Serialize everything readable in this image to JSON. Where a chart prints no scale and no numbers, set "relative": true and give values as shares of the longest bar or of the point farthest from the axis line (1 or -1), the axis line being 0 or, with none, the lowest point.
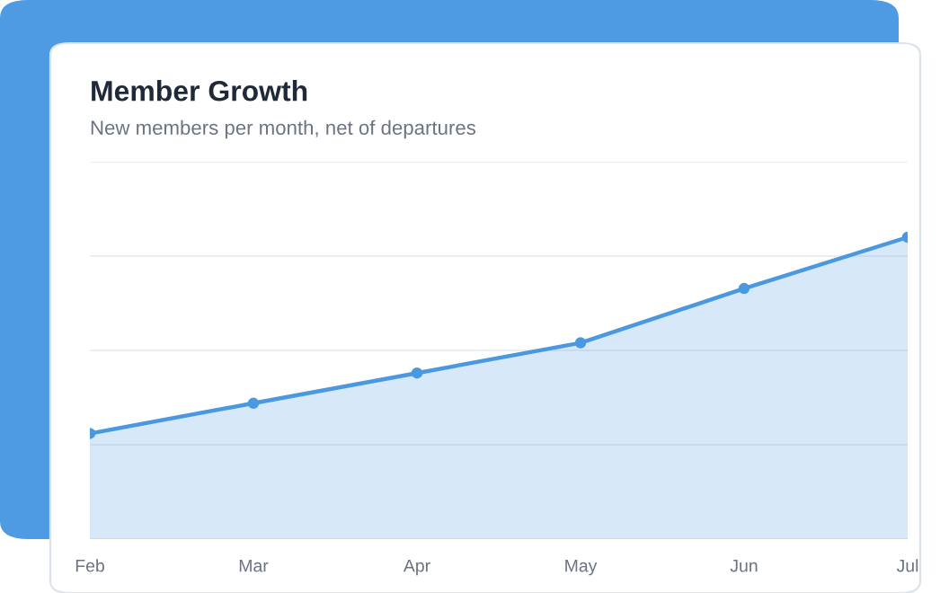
{
  "chart_data": {
    "type": "area",
    "title": "Member Growth",
    "subtitle": "New members per month, net of departures",
    "categories": [
      "Feb",
      "Mar",
      "Apr",
      "May",
      "Jun",
      "Jul"
    ],
    "relative": true,
    "series": [
      {
        "color": "#4a98e0",
        "values": [
          0.35,
          0.45,
          0.55,
          0.65,
          0.83,
          1.0
        ]
      }
    ],
    "marker": "circle",
    "line_style": "solid",
    "grid": "y",
    "legend": false
  }
}
